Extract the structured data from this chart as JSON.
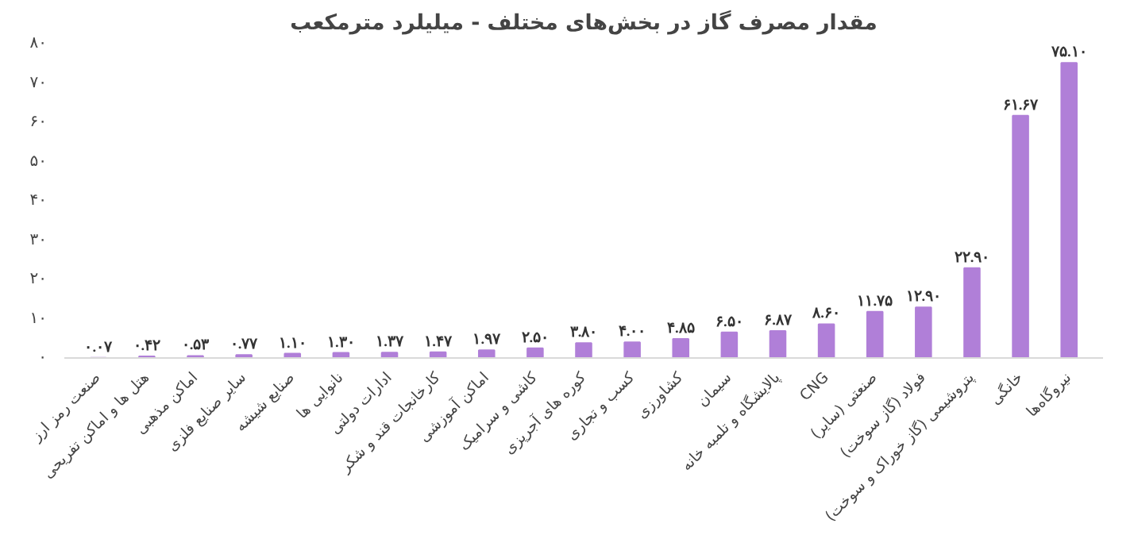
{
  "chart_data": {
    "type": "bar",
    "title": "مقدار مصرف گاز در بخش‌های مختلف - میلیلرد مترمکعب",
    "categories": [
      "صنعت رمز ارز",
      "هتل ها و اماکن تفریحی",
      "اماکن مذهبی",
      "سایر صنایع فلزی",
      "صنایع شیشه",
      "نانوایی ها",
      "ادارات دولتی",
      "کارخانجات قند و شکر",
      "اماکن آموزشی",
      "کاشی و سرامیک",
      "کوره های آجرپزی",
      "کسب و تجاری",
      "کشاورزی",
      "سیمان",
      "پالایشگاه و تلمبه خانه",
      "CNG",
      "صنعتی (سایر)",
      "فولاد (گاز سوخت)",
      "پتروشیمی (گاز خوراک و سوخت)",
      "خانگی",
      "نیروگاه‌ها"
    ],
    "values": [
      0.07,
      0.42,
      0.53,
      0.77,
      1.1,
      1.3,
      1.37,
      1.47,
      1.97,
      2.5,
      3.8,
      4.0,
      4.85,
      6.5,
      6.87,
      8.6,
      11.75,
      12.9,
      22.9,
      61.67,
      75.1
    ],
    "value_labels": [
      "۰.۰۷",
      "۰.۴۲",
      "۰.۵۳",
      "۰.۷۷",
      "۱.۱۰",
      "۱.۳۰",
      "۱.۳۷",
      "۱.۴۷",
      "۱.۹۷",
      "۲.۵۰",
      "۳.۸۰",
      "۴.۰۰",
      "۴.۸۵",
      "۶.۵۰",
      "۶.۸۷",
      "۸.۶۰",
      "۱۱.۷۵",
      "۱۲.۹۰",
      "۲۲.۹۰",
      "۶۱.۶۷",
      "۷۵.۱۰"
    ],
    "color": "#b07fd8",
    "ylim": [
      0,
      80
    ],
    "yticks": [
      {
        "value": 0,
        "label": "۰"
      },
      {
        "value": 10,
        "label": "۱۰"
      },
      {
        "value": 20,
        "label": "۲۰"
      },
      {
        "value": 30,
        "label": "۳۰"
      },
      {
        "value": 40,
        "label": "۴۰"
      },
      {
        "value": 50,
        "label": "۵۰"
      },
      {
        "value": 60,
        "label": "۶۰"
      },
      {
        "value": 70,
        "label": "۷۰"
      },
      {
        "value": 80,
        "label": "۸۰"
      }
    ],
    "grid": false
  }
}
